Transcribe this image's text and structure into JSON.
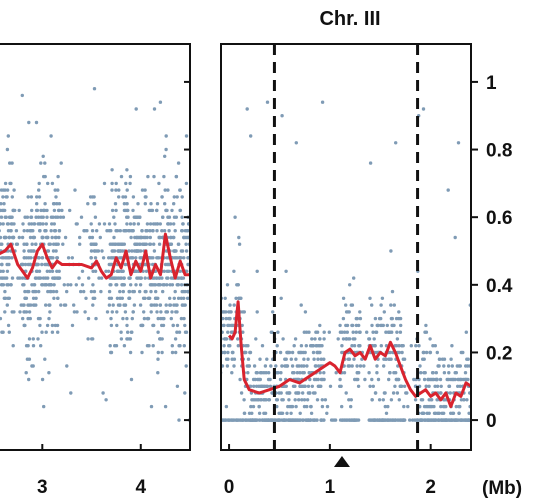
{
  "chart_data": [
    {
      "type": "scatter",
      "title": "",
      "xlabel": "",
      "ylabel": "",
      "x_ticks": [
        "3",
        "4"
      ],
      "x_tick_values": [
        3,
        4
      ],
      "xlim": [
        2.55,
        4.5
      ],
      "ylim": [
        -0.05,
        1.05
      ],
      "points_color": "#7f9bb5",
      "series": [
        {
          "type": "line",
          "color": "#d9232e",
          "x": [
            2.55,
            2.62,
            2.68,
            2.75,
            2.8,
            2.85,
            2.9,
            2.95,
            3.0,
            3.05,
            3.1,
            3.15,
            3.2,
            3.3,
            3.4,
            3.5,
            3.55,
            3.6,
            3.65,
            3.7,
            3.75,
            3.8,
            3.85,
            3.9,
            3.95,
            4.0,
            4.05,
            4.1,
            4.15,
            4.2,
            4.25,
            4.3,
            4.35,
            4.4,
            4.45,
            4.5
          ],
          "y": [
            0.49,
            0.5,
            0.52,
            0.46,
            0.44,
            0.42,
            0.45,
            0.5,
            0.52,
            0.48,
            0.45,
            0.47,
            0.46,
            0.46,
            0.46,
            0.45,
            0.47,
            0.44,
            0.42,
            0.43,
            0.48,
            0.45,
            0.5,
            0.43,
            0.47,
            0.44,
            0.5,
            0.42,
            0.46,
            0.43,
            0.55,
            0.48,
            0.42,
            0.47,
            0.43,
            0.43
          ]
        }
      ]
    },
    {
      "type": "scatter",
      "title": "Chr. III",
      "xlabel": "(Mb)",
      "ylabel": "",
      "x_ticks": [
        "0",
        "1",
        "2"
      ],
      "x_tick_values": [
        0,
        1,
        2
      ],
      "xlim": [
        -0.08,
        2.4
      ],
      "y_ticks": [
        "0",
        "0.2",
        "0.4",
        "0.6",
        "0.8",
        "1"
      ],
      "y_tick_values": [
        0,
        0.2,
        0.4,
        0.6,
        0.8,
        1
      ],
      "ylim": [
        -0.05,
        1.05
      ],
      "grid": false,
      "vlines": [
        0.45,
        1.87
      ],
      "marker_x": 1.12,
      "points_color": "#7f9bb5",
      "series": [
        {
          "type": "line",
          "color": "#d9232e",
          "x": [
            0.0,
            0.03,
            0.06,
            0.09,
            0.12,
            0.15,
            0.2,
            0.3,
            0.4,
            0.5,
            0.6,
            0.7,
            0.8,
            0.9,
            1.0,
            1.05,
            1.1,
            1.15,
            1.2,
            1.25,
            1.3,
            1.35,
            1.4,
            1.45,
            1.5,
            1.55,
            1.6,
            1.65,
            1.7,
            1.75,
            1.8,
            1.85,
            1.9,
            1.95,
            2.0,
            2.05,
            2.1,
            2.15,
            2.2,
            2.25,
            2.3,
            2.35,
            2.4
          ],
          "y": [
            0.25,
            0.24,
            0.26,
            0.35,
            0.22,
            0.12,
            0.09,
            0.08,
            0.09,
            0.1,
            0.12,
            0.11,
            0.13,
            0.15,
            0.17,
            0.16,
            0.14,
            0.2,
            0.21,
            0.19,
            0.2,
            0.18,
            0.22,
            0.18,
            0.2,
            0.19,
            0.23,
            0.2,
            0.16,
            0.12,
            0.09,
            0.07,
            0.08,
            0.09,
            0.07,
            0.08,
            0.06,
            0.08,
            0.04,
            0.08,
            0.07,
            0.11,
            0.1
          ]
        }
      ]
    }
  ]
}
